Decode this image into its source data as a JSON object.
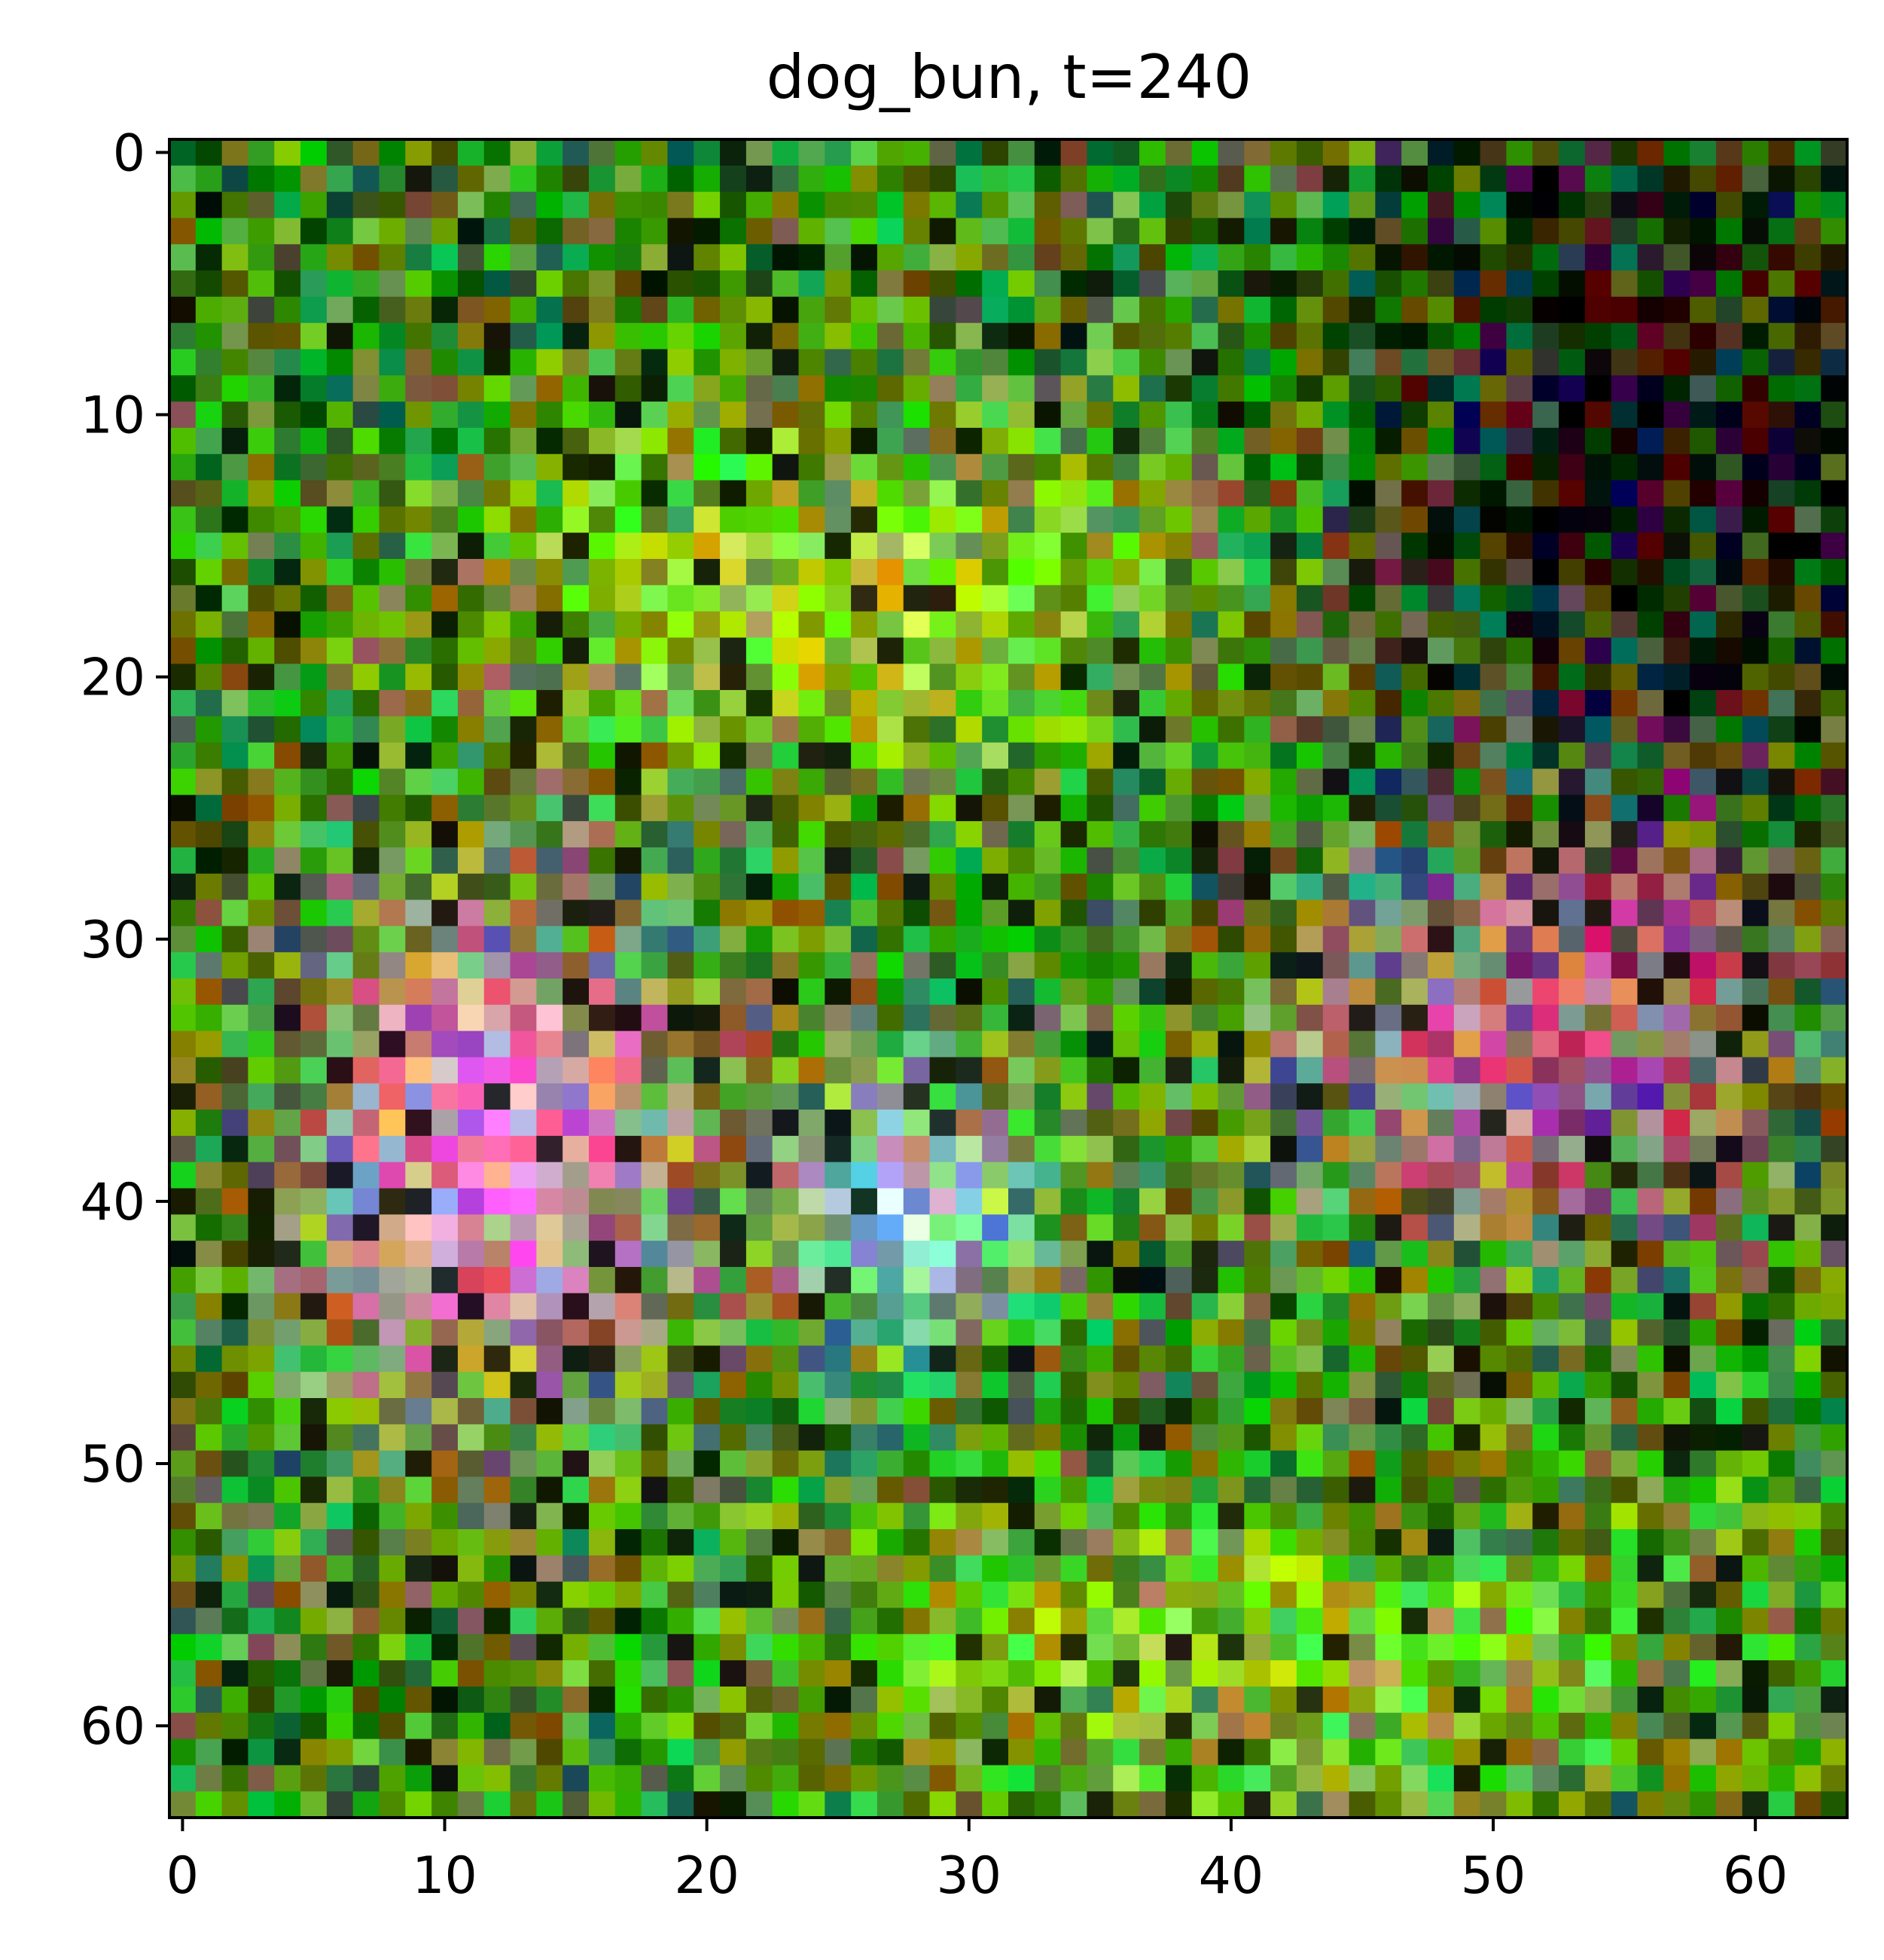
{
  "title": "dog_bun, t=240",
  "image": {
    "grid_size": [
      64,
      64
    ],
    "description_colors": {
      "green_bg": "#3f8a12",
      "lime": "#a8e020",
      "pink": "#f08ccc",
      "magenta": "#c0208a",
      "dark": "#101010",
      "light_blue": "#bcd8f4"
    }
  },
  "axes": {
    "x_ticks": [
      "0",
      "10",
      "20",
      "30",
      "40",
      "50",
      "60"
    ],
    "y_ticks": [
      "0",
      "10",
      "20",
      "30",
      "40",
      "50",
      "60"
    ],
    "x_tick_values": [
      0,
      10,
      20,
      30,
      40,
      50,
      60
    ],
    "y_tick_values": [
      0,
      10,
      20,
      30,
      40,
      50,
      60
    ],
    "xlim": [
      -0.5,
      63.5
    ],
    "ylim": [
      63.5,
      -0.5
    ]
  }
}
